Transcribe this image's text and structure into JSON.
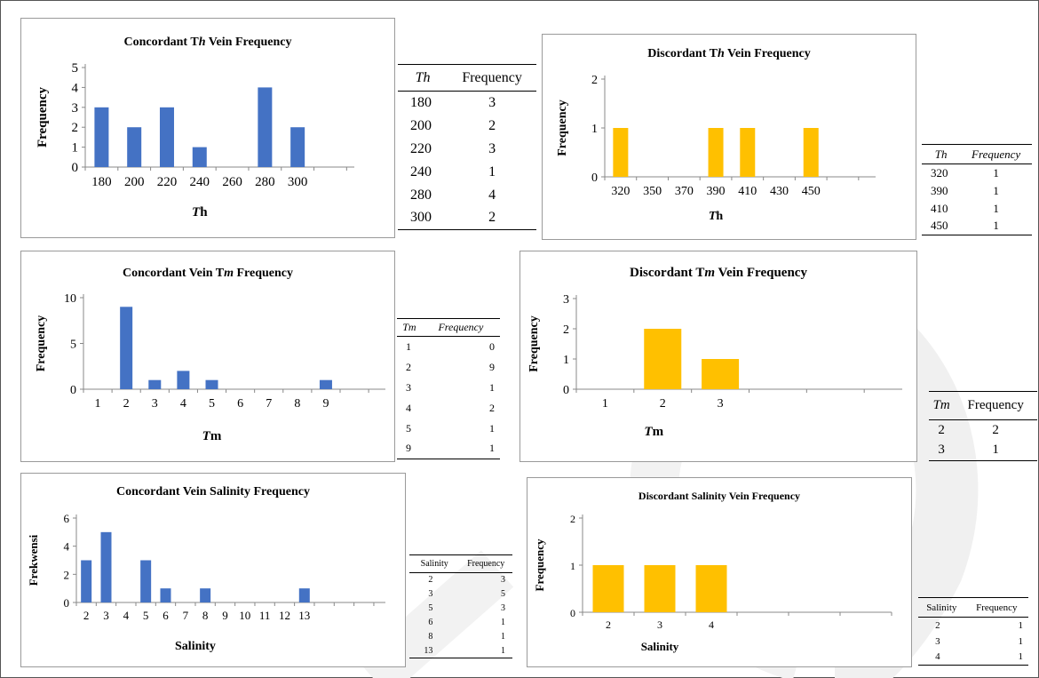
{
  "charts": [
    {
      "id": "conc-th",
      "type": "bar",
      "title": "Concordant Th Vein Frequency",
      "title_parts": [
        "Concordant T",
        "h",
        " Vein Frequency"
      ],
      "ylabel": "Frequency",
      "xlabel_parts": [
        "T",
        "h"
      ],
      "categories": [
        "180",
        "200",
        "220",
        "240",
        "260",
        "280",
        "300"
      ],
      "values": [
        3,
        2,
        3,
        1,
        0,
        4,
        2
      ],
      "yticks": [
        0,
        1,
        2,
        3,
        4,
        5
      ],
      "ylim": [
        0,
        5
      ],
      "color": "#4472C4",
      "grid": false
    },
    {
      "id": "disc-th",
      "type": "bar",
      "title": "Discordant Th Vein Frequency",
      "title_parts": [
        "Discordant T",
        "h",
        " Vein Frequency"
      ],
      "ylabel": "Frequency",
      "xlabel_parts": [
        "T",
        "h"
      ],
      "categories": [
        "320",
        "350",
        "370",
        "390",
        "410",
        "430",
        "450"
      ],
      "values": [
        1,
        0,
        0,
        1,
        1,
        0,
        1
      ],
      "yticks": [
        0,
        1,
        2
      ],
      "ylim": [
        0,
        2
      ],
      "color": "#FFC000",
      "grid": false
    },
    {
      "id": "conc-tm",
      "type": "bar",
      "title": "Concordant Vein Tm Frequency",
      "title_parts": [
        "Concordant Vein T",
        "m",
        " Frequency"
      ],
      "ylabel": "Frequency",
      "xlabel_parts": [
        "T",
        "m"
      ],
      "categories": [
        "1",
        "2",
        "3",
        "4",
        "5",
        "6",
        "7",
        "8",
        "9"
      ],
      "values": [
        0,
        9,
        1,
        2,
        1,
        0,
        0,
        0,
        1
      ],
      "yticks": [
        0,
        5,
        10
      ],
      "ylim": [
        0,
        10
      ],
      "color": "#4472C4",
      "grid": false
    },
    {
      "id": "disc-tm",
      "type": "bar",
      "title": "Discordant Tm Vein Frequency",
      "title_parts": [
        "Discordant T",
        "m",
        " Vein Frequency"
      ],
      "ylabel": "Frequency",
      "xlabel_parts": [
        "T",
        "m"
      ],
      "categories": [
        "1",
        "2",
        "3"
      ],
      "values": [
        0,
        2,
        1
      ],
      "yticks": [
        0,
        1,
        2,
        3
      ],
      "ylim": [
        0,
        3
      ],
      "color": "#FFC000",
      "grid": false
    },
    {
      "id": "conc-sal",
      "type": "bar",
      "title": "Concordant Vein Salinity Frequency",
      "ylabel": "Frekwensi",
      "xlabel": "Salinity",
      "categories": [
        "2",
        "3",
        "4",
        "5",
        "6",
        "7",
        "8",
        "9",
        "10",
        "11",
        "12",
        "13"
      ],
      "values": [
        3,
        5,
        0,
        3,
        1,
        0,
        1,
        0,
        0,
        0,
        0,
        1
      ],
      "yticks": [
        0,
        2,
        4,
        6
      ],
      "ylim": [
        0,
        6
      ],
      "color": "#4472C4",
      "grid": false
    },
    {
      "id": "disc-sal",
      "type": "bar",
      "title": "Discordant Salinity Vein Frequency",
      "ylabel": "Frequency",
      "xlabel": "Salinity",
      "categories": [
        "2",
        "3",
        "4"
      ],
      "values": [
        1,
        1,
        1
      ],
      "yticks": [
        0,
        1,
        2
      ],
      "ylim": [
        0,
        2
      ],
      "color": "#FFC000",
      "grid": false
    }
  ],
  "tables": [
    {
      "id": "tbl-conc-th",
      "headers": [
        "Th",
        "Frequency"
      ],
      "rows": [
        [
          "180",
          "3"
        ],
        [
          "200",
          "2"
        ],
        [
          "220",
          "3"
        ],
        [
          "240",
          "1"
        ],
        [
          "280",
          "4"
        ],
        [
          "300",
          "2"
        ]
      ]
    },
    {
      "id": "tbl-disc-th",
      "headers": [
        "Th",
        "Frequency"
      ],
      "rows": [
        [
          "320",
          "1"
        ],
        [
          "390",
          "1"
        ],
        [
          "410",
          "1"
        ],
        [
          "450",
          "1"
        ]
      ]
    },
    {
      "id": "tbl-conc-tm",
      "headers": [
        "Tm",
        "Frequency"
      ],
      "rows": [
        [
          "1",
          "0"
        ],
        [
          "2",
          "9"
        ],
        [
          "3",
          "1"
        ],
        [
          "4",
          "2"
        ],
        [
          "5",
          "1"
        ],
        [
          "9",
          "1"
        ]
      ]
    },
    {
      "id": "tbl-disc-tm",
      "headers": [
        "Tm",
        "Frequency"
      ],
      "rows": [
        [
          "2",
          "2"
        ],
        [
          "3",
          "1"
        ]
      ]
    },
    {
      "id": "tbl-conc-sal",
      "headers": [
        "Salinity",
        "Frequency"
      ],
      "rows": [
        [
          "2",
          "3"
        ],
        [
          "3",
          "5"
        ],
        [
          "5",
          "3"
        ],
        [
          "6",
          "1"
        ],
        [
          "8",
          "1"
        ],
        [
          "13",
          "1"
        ]
      ]
    },
    {
      "id": "tbl-disc-sal",
      "headers": [
        "Salinity",
        "Frequency"
      ],
      "rows": [
        [
          "2",
          "1"
        ],
        [
          "3",
          "1"
        ],
        [
          "4",
          "1"
        ]
      ]
    }
  ]
}
